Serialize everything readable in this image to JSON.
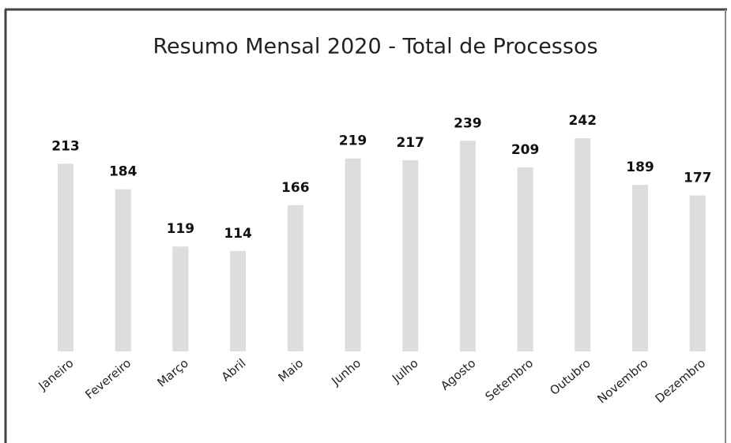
{
  "chart_data": {
    "type": "bar",
    "title": "Resumo Mensal 2020 - Total de Processos",
    "categories": [
      "Janeiro",
      "Fevereiro",
      "Março",
      "Abril",
      "Maio",
      "Junho",
      "Julho",
      "Agosto",
      "Setembro",
      "Outubro",
      "Novembro",
      "Dezembro"
    ],
    "values": [
      213,
      184,
      119,
      114,
      166,
      219,
      217,
      239,
      209,
      242,
      189,
      177
    ],
    "color": "#dddddd"
  }
}
